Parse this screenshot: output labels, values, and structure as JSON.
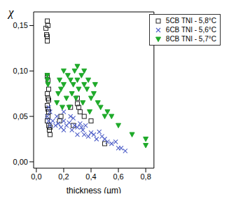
{
  "chart_data": {
    "type": "scatter",
    "x_label": "thickness (µm)",
    "y_label": "χ",
    "xlim": [
      -0.02,
      0.86
    ],
    "ylim": [
      -0.007,
      0.165
    ],
    "xticks": [
      {
        "value": 0,
        "label": "0,0"
      },
      {
        "value": 0.2,
        "label": "0,2"
      },
      {
        "value": 0.4,
        "label": "0,4"
      },
      {
        "value": 0.6,
        "label": "0,6"
      },
      {
        "value": 0.8,
        "label": "0,8"
      }
    ],
    "yticks": [
      {
        "value": 0,
        "label": "0,00"
      },
      {
        "value": 0.05,
        "label": "0,05"
      },
      {
        "value": 0.1,
        "label": "0,10"
      },
      {
        "value": 0.15,
        "label": "0,15"
      }
    ],
    "legend": "upper right",
    "grid": false,
    "series": [
      {
        "name": "5CB TNI - 5,8°C",
        "color": "#222222",
        "marker": "square",
        "x": [
          0.07,
          0.08,
          0.075,
          0.085,
          0.08,
          0.08,
          0.08,
          0.085,
          0.09,
          0.08,
          0.085,
          0.09,
          0.08,
          0.085,
          0.09,
          0.085,
          0.08,
          0.09,
          0.095,
          0.1,
          0.1,
          0.17,
          0.18,
          0.25,
          0.27,
          0.3,
          0.3,
          0.31,
          0.32,
          0.35,
          0.4,
          0.5
        ],
        "values": [
          0.147,
          0.155,
          0.14,
          0.15,
          0.133,
          0.138,
          0.095,
          0.09,
          0.08,
          0.075,
          0.07,
          0.068,
          0.062,
          0.058,
          0.055,
          0.05,
          0.045,
          0.04,
          0.035,
          0.038,
          0.03,
          0.045,
          0.05,
          0.06,
          0.04,
          0.07,
          0.064,
          0.06,
          0.055,
          0.05,
          0.045,
          0.02
        ]
      },
      {
        "name": "6CB TNI - 5,6°C",
        "color": "#5060c8",
        "marker": "cross",
        "x": [
          0.08,
          0.09,
          0.1,
          0.1,
          0.12,
          0.14,
          0.15,
          0.16,
          0.18,
          0.2,
          0.2,
          0.22,
          0.24,
          0.25,
          0.26,
          0.28,
          0.3,
          0.3,
          0.32,
          0.34,
          0.35,
          0.36,
          0.38,
          0.4,
          0.42,
          0.44,
          0.46,
          0.48,
          0.5,
          0.52,
          0.55,
          0.58,
          0.6,
          0.62,
          0.65,
          0.09,
          0.2,
          0.27,
          0.33
        ],
        "values": [
          0.05,
          0.045,
          0.04,
          0.055,
          0.045,
          0.04,
          0.05,
          0.042,
          0.038,
          0.045,
          0.035,
          0.04,
          0.043,
          0.05,
          0.035,
          0.04,
          0.038,
          0.03,
          0.042,
          0.035,
          0.03,
          0.04,
          0.028,
          0.032,
          0.03,
          0.025,
          0.033,
          0.028,
          0.025,
          0.022,
          0.02,
          0.022,
          0.015,
          0.015,
          0.012,
          0.06,
          0.055,
          0.048,
          0.038
        ]
      },
      {
        "name": "8CB TNI - 5,7°C",
        "color": "#1faa2a",
        "marker": "triangle-down",
        "x": [
          0.08,
          0.08,
          0.085,
          0.15,
          0.16,
          0.17,
          0.18,
          0.2,
          0.2,
          0.22,
          0.23,
          0.25,
          0.26,
          0.27,
          0.28,
          0.3,
          0.3,
          0.31,
          0.33,
          0.35,
          0.35,
          0.37,
          0.38,
          0.4,
          0.42,
          0.43,
          0.45,
          0.47,
          0.5,
          0.52,
          0.55,
          0.6,
          0.7,
          0.8,
          0.8,
          0.19,
          0.24,
          0.29,
          0.34,
          0.39
        ],
        "values": [
          0.095,
          0.09,
          0.085,
          0.065,
          0.075,
          0.09,
          0.08,
          0.1,
          0.085,
          0.07,
          0.095,
          0.09,
          0.075,
          0.085,
          0.1,
          0.105,
          0.09,
          0.08,
          0.095,
          0.1,
          0.085,
          0.08,
          0.09,
          0.07,
          0.075,
          0.085,
          0.065,
          0.06,
          0.05,
          0.055,
          0.05,
          0.04,
          0.03,
          0.025,
          0.018,
          0.06,
          0.06,
          0.07,
          0.065,
          0.055
        ]
      }
    ]
  }
}
